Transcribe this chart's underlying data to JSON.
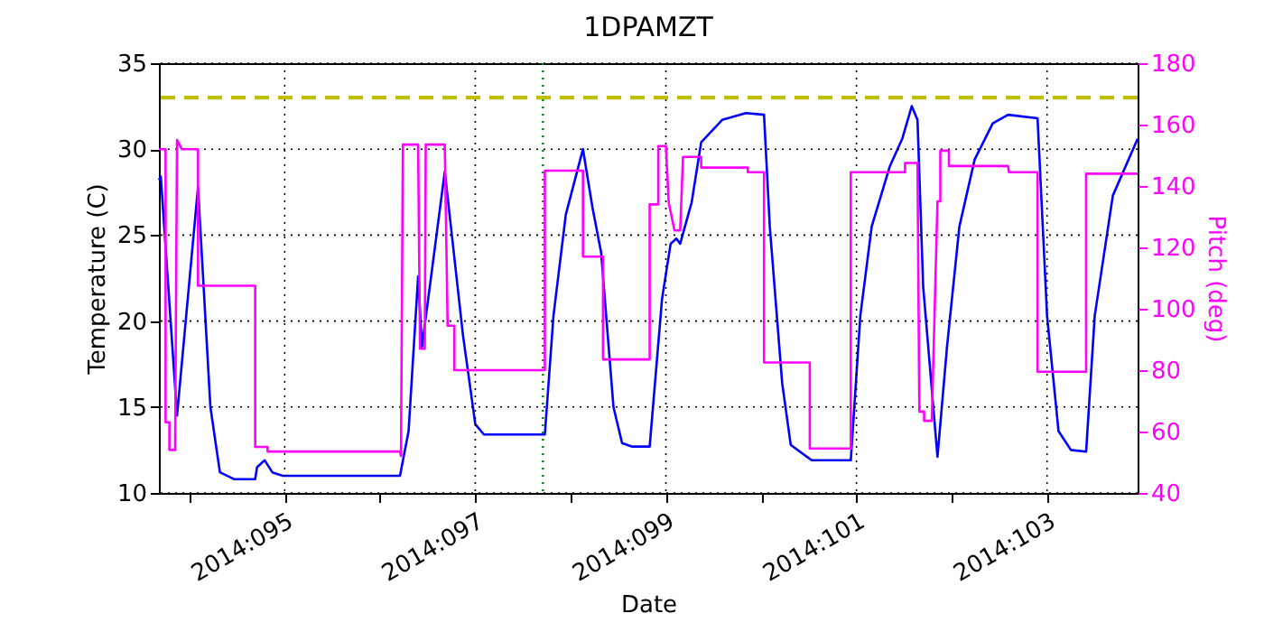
{
  "chart_data": {
    "type": "line",
    "title": "1DPAMZT",
    "xlabel": "Date",
    "ylabel": "Temperature (C)",
    "y2label": "Pitch (deg)",
    "xlim": [
      "2014-04-03T16:19",
      "2014-04-13T22:48"
    ],
    "xticks": [
      {
        "value": "2014-04-04",
        "label": null
      },
      {
        "value": "2014-04-05",
        "label": "2014:095"
      },
      {
        "value": "2014-04-06",
        "label": null
      },
      {
        "value": "2014-04-07",
        "label": "2014:097"
      },
      {
        "value": "2014-04-08",
        "label": null
      },
      {
        "value": "2014-04-09",
        "label": "2014:099"
      },
      {
        "value": "2014-04-10",
        "label": null
      },
      {
        "value": "2014-04-11",
        "label": "2014:101"
      },
      {
        "value": "2014-04-12",
        "label": null
      },
      {
        "value": "2014-04-13",
        "label": "2014:103"
      }
    ],
    "ylim": [
      10,
      35
    ],
    "yticks": [
      10,
      15,
      20,
      25,
      30,
      35
    ],
    "y2lim": [
      40,
      180
    ],
    "y2ticks": [
      40,
      60,
      80,
      100,
      120,
      140,
      160,
      180
    ],
    "grid": true,
    "line_style": "solid",
    "ref_lines": [
      {
        "axis": "y",
        "value": 33,
        "color": "#bfbf00",
        "line_style": "dashed"
      },
      {
        "axis": "x",
        "value": "2014-04-07T17:02",
        "color": "#008000",
        "line_style": "dotted"
      }
    ],
    "series": [
      {
        "color": "#0000ff",
        "x": [
          "2014-04-03T16:19",
          "2014-04-03T16:48",
          "2014-04-03T20:53",
          "2014-04-04T02:10",
          "2014-04-04T05:17",
          "2014-04-04T07:41",
          "2014-04-04T11:17",
          "2014-04-04T16:34",
          "2014-04-04T17:02",
          "2014-04-04T18:58",
          "2014-04-04T20:53",
          "2014-04-04T23:31",
          "2014-04-06T05:02",
          "2014-04-06T07:12",
          "2014-04-06T09:36",
          "2014-04-06T10:34",
          "2014-04-06T16:19",
          "2014-04-06T20:53",
          "2014-04-07T00:00",
          "2014-04-07T02:10",
          "2014-04-07T17:31",
          "2014-04-07T19:41",
          "2014-04-07T22:48",
          "2014-04-08T03:07",
          "2014-04-08T05:31",
          "2014-04-08T07:41",
          "2014-04-08T10:48",
          "2014-04-08T12:58",
          "2014-04-08T15:22",
          "2014-04-08T19:55",
          "2014-04-08T23:02",
          "2014-04-09T01:12",
          "2014-04-09T02:38",
          "2014-04-09T03:36",
          "2014-04-09T06:29",
          "2014-04-09T08:53",
          "2014-04-09T14:10",
          "2014-04-09T20:10",
          "2014-04-10T00:43",
          "2014-04-10T02:10",
          "2014-04-10T05:17",
          "2014-04-10T07:26",
          "2014-04-10T12:43",
          "2014-04-10T22:34",
          "2014-04-11T00:58",
          "2014-04-11T03:50",
          "2014-04-11T08:24",
          "2014-04-11T11:31",
          "2014-04-11T13:55",
          "2014-04-11T15:22",
          "2014-04-11T16:48",
          "2014-04-11T20:24",
          "2014-04-11T22:48",
          "2014-04-12T01:55",
          "2014-04-12T05:46",
          "2014-04-12T10:19",
          "2014-04-12T14:10",
          "2014-04-12T21:36",
          "2014-04-13T00:00",
          "2014-04-13T02:53",
          "2014-04-13T06:00",
          "2014-04-13T09:50",
          "2014-04-13T12:00",
          "2014-04-13T16:34",
          "2014-04-13T22:48"
        ],
        "values": [
          28.2,
          28.4,
          14.5,
          27.8,
          15.0,
          11.2,
          10.8,
          10.8,
          11.5,
          11.9,
          11.2,
          11.0,
          11.0,
          13.6,
          22.6,
          18.5,
          28.7,
          19.2,
          14.0,
          13.4,
          13.4,
          20.3,
          26.2,
          30.0,
          26.6,
          24.0,
          15.0,
          12.9,
          12.7,
          12.7,
          21.3,
          24.5,
          24.8,
          24.5,
          26.9,
          30.4,
          31.7,
          32.1,
          32.0,
          25.5,
          16.4,
          12.8,
          11.9,
          11.9,
          20.3,
          25.5,
          29.0,
          30.6,
          32.5,
          31.7,
          22.0,
          12.1,
          18.5,
          25.5,
          29.4,
          31.5,
          32.0,
          31.8,
          20.3,
          13.6,
          12.5,
          12.4,
          20.3,
          27.3,
          30.6
        ]
      },
      {
        "color": "#ff00ff",
        "axis": "y2",
        "x": [
          "2014-04-03T16:19",
          "2014-04-03T18:00",
          "2014-04-03T18:00",
          "2014-04-03T18:58",
          "2014-04-03T18:58",
          "2014-04-03T20:24",
          "2014-04-03T20:53",
          "2014-04-03T22:05",
          "2014-04-04T02:10",
          "2014-04-04T02:10",
          "2014-04-04T16:34",
          "2014-04-04T16:34",
          "2014-04-04T19:41",
          "2014-04-04T19:41",
          "2014-04-06T05:02",
          "2014-04-06T05:17",
          "2014-04-06T05:46",
          "2014-04-06T09:36",
          "2014-04-06T10:05",
          "2014-04-06T11:17",
          "2014-04-06T11:31",
          "2014-04-06T16:19",
          "2014-04-06T17:02",
          "2014-04-06T18:43",
          "2014-04-06T18:43",
          "2014-04-07T17:31",
          "2014-04-07T17:31",
          "2014-04-08T03:07",
          "2014-04-08T03:07",
          "2014-04-08T08:10",
          "2014-04-08T08:10",
          "2014-04-08T19:55",
          "2014-04-08T19:55",
          "2014-04-08T22:05",
          "2014-04-08T22:05",
          "2014-04-09T00:00",
          "2014-04-09T00:43",
          "2014-04-09T02:10",
          "2014-04-09T03:36",
          "2014-04-09T04:19",
          "2014-04-09T08:53",
          "2014-04-09T08:53",
          "2014-04-09T20:38",
          "2014-04-09T20:38",
          "2014-04-10T00:43",
          "2014-04-10T00:43",
          "2014-04-10T12:14",
          "2014-04-10T12:14",
          "2014-04-10T22:34",
          "2014-04-10T22:34",
          "2014-04-11T12:14",
          "2014-04-11T12:14",
          "2014-04-11T15:22",
          "2014-04-11T15:50",
          "2014-04-11T17:02",
          "2014-04-11T17:02",
          "2014-04-11T18:58",
          "2014-04-11T20:24",
          "2014-04-11T21:07",
          "2014-04-11T21:07",
          "2014-04-11T23:17",
          "2014-04-11T23:17",
          "2014-04-12T14:10",
          "2014-04-12T14:24",
          "2014-04-12T21:36",
          "2014-04-12T21:36",
          "2014-04-13T09:50",
          "2014-04-13T09:50",
          "2014-04-13T22:48"
        ],
        "values": [
          152,
          152,
          63,
          63,
          54,
          54,
          155,
          152,
          152,
          107.5,
          107.5,
          55,
          55,
          53.5,
          53.5,
          52,
          153.5,
          153.5,
          87,
          87,
          153.5,
          153.5,
          94.5,
          94.5,
          80,
          80,
          145,
          145,
          117,
          117,
          83.5,
          83.5,
          134,
          134,
          153,
          153,
          134.5,
          125.5,
          125.5,
          149.5,
          149.5,
          146,
          146,
          144.5,
          144.5,
          82.5,
          82.5,
          54.5,
          54.5,
          144.5,
          144.5,
          147.5,
          147.5,
          66.5,
          66.5,
          63.5,
          63.5,
          135,
          135,
          151.5,
          151.5,
          146.5,
          146.5,
          144.5,
          144.5,
          79.5,
          79.5,
          144,
          144
        ]
      }
    ]
  }
}
